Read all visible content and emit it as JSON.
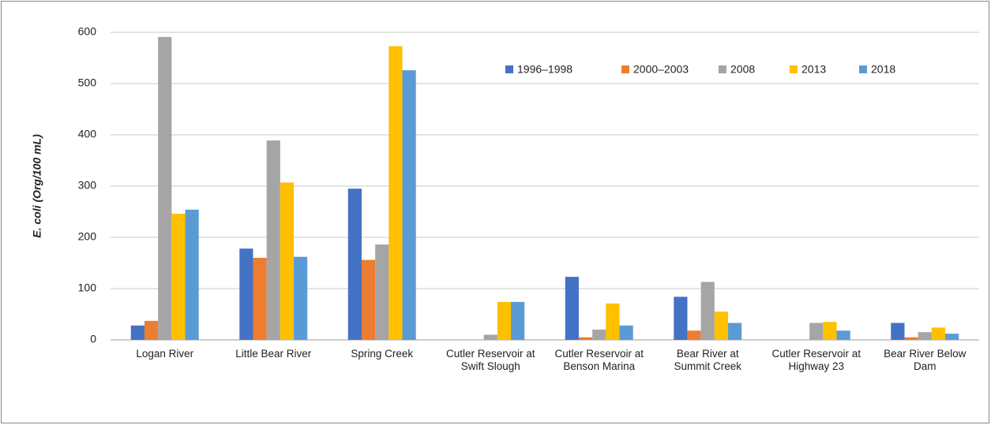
{
  "chart_data": {
    "type": "bar",
    "ylabel": "E. coli (Org/100 mL)",
    "categories": [
      "Logan River",
      "Little Bear River",
      "Spring Creek",
      "Cutler Reservoir at Swift Slough",
      "Cutler Reservoir at Benson Marina",
      "Bear River at Summit Creek",
      "Cutler Reservoir at Highway 23",
      "Bear River Below Dam"
    ],
    "series": [
      {
        "name": "1996–1998",
        "color": "#4472c4",
        "values": [
          28,
          178,
          295,
          null,
          123,
          84,
          null,
          33
        ]
      },
      {
        "name": "2000–2003",
        "color": "#ed7d31",
        "values": [
          37,
          160,
          156,
          null,
          5,
          18,
          null,
          5
        ]
      },
      {
        "name": "2008",
        "color": "#a5a5a5",
        "values": [
          591,
          389,
          186,
          10,
          20,
          113,
          33,
          15
        ]
      },
      {
        "name": "2013",
        "color": "#ffc000",
        "values": [
          246,
          307,
          573,
          74,
          71,
          55,
          35,
          24
        ]
      },
      {
        "name": "2018",
        "color": "#5b9bd5",
        "values": [
          254,
          162,
          526,
          74,
          28,
          33,
          18,
          12
        ]
      }
    ],
    "ylim": [
      0,
      600
    ],
    "yticks": [
      0,
      100,
      200,
      300,
      400,
      500,
      600
    ],
    "grid": true,
    "legend": "upper right"
  }
}
